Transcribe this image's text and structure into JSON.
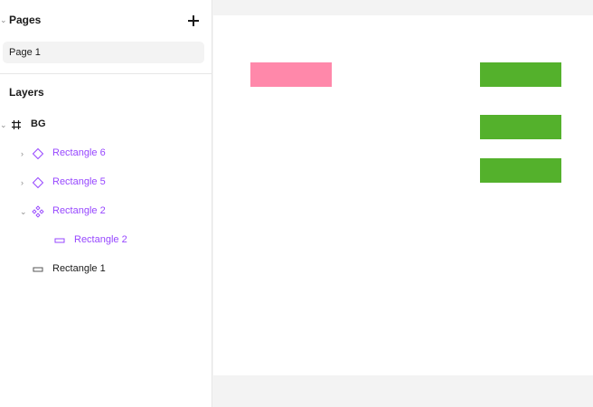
{
  "pages_panel": {
    "title": "Pages",
    "add_button": "add-page",
    "pages": [
      {
        "label": "Page 1",
        "selected": true
      }
    ]
  },
  "layers_panel": {
    "title": "Layers",
    "layers": [
      {
        "label": "BG",
        "icon": "frame-hash-icon",
        "expanded": true
      },
      {
        "label": "Rectangle 6",
        "icon": "component-instance-diamond-icon",
        "expanded": false
      },
      {
        "label": "Rectangle 5",
        "icon": "component-instance-diamond-icon",
        "expanded": false
      },
      {
        "label": "Rectangle 2",
        "icon": "main-component-icon",
        "expanded": true
      },
      {
        "label": "Rectangle 2",
        "icon": "rectangle-icon"
      },
      {
        "label": "Rectangle 1",
        "icon": "rectangle-icon"
      }
    ]
  },
  "colors": {
    "component": "#9747ff",
    "pink_rect": "#ff88aa",
    "green_rect": "#54b12c"
  }
}
